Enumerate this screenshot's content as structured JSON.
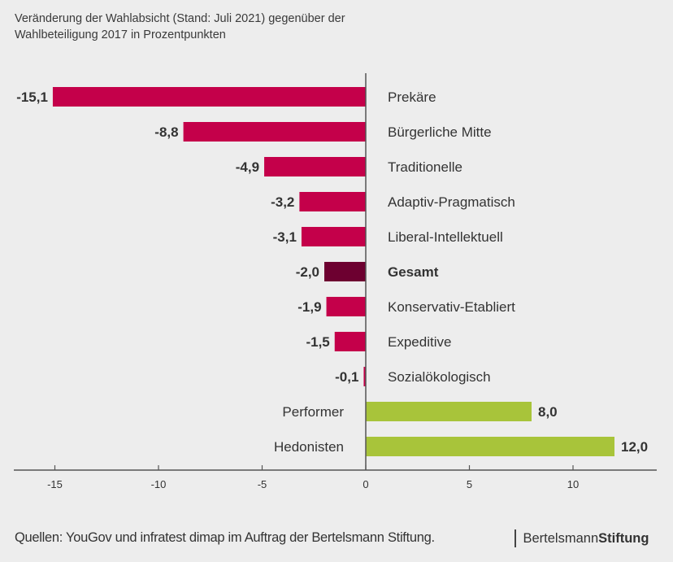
{
  "title_lines": [
    "Veränderung der Wahlabsicht (Stand: Juli 2021) gegenüber der",
    "Wahlbeteiligung 2017 in Prozentpunkten"
  ],
  "footer": {
    "source": "Quellen: YouGov und infratest dimap im Auftrag der Bertelsmann Stiftung.",
    "brand_regular": "Bertelsmann",
    "brand_bold": "Stiftung"
  },
  "colors": {
    "negative": "#c4004a",
    "total": "#6d0030",
    "positive": "#a8c43a",
    "axis": "#555555",
    "text": "#333333"
  },
  "chart_data": {
    "type": "bar",
    "orientation": "horizontal",
    "title": "Veränderung der Wahlabsicht (Stand: Juli 2021) gegenüber der Wahlbeteiligung 2017 in Prozentpunkten",
    "xlabel": "",
    "ylabel": "",
    "xlim": [
      -17,
      14
    ],
    "xticks": [
      -15,
      -10,
      -5,
      0,
      5,
      10
    ],
    "xtick_labels": [
      "-15",
      "-10",
      "-5",
      "0",
      "5",
      "10"
    ],
    "grid": false,
    "categories": [
      "Prekäre",
      "Bürgerliche Mitte",
      "Traditionelle",
      "Adaptiv-Pragmatisch",
      "Liberal-Intellektuell",
      "Gesamt",
      "Konservativ-Etabliert",
      "Expeditive",
      "Sozialökologisch",
      "Performer",
      "Hedonisten"
    ],
    "values": [
      -15.1,
      -8.8,
      -4.9,
      -3.2,
      -3.1,
      -2.0,
      -1.9,
      -1.5,
      -0.1,
      8.0,
      12.0
    ],
    "value_labels": [
      "-15,1",
      "-8,8",
      "-4,9",
      "-3,2",
      "-3,1",
      "-2,0",
      "-1,9",
      "-1,5",
      "-0,1",
      "8,0",
      "12,0"
    ],
    "highlight": "Gesamt"
  }
}
